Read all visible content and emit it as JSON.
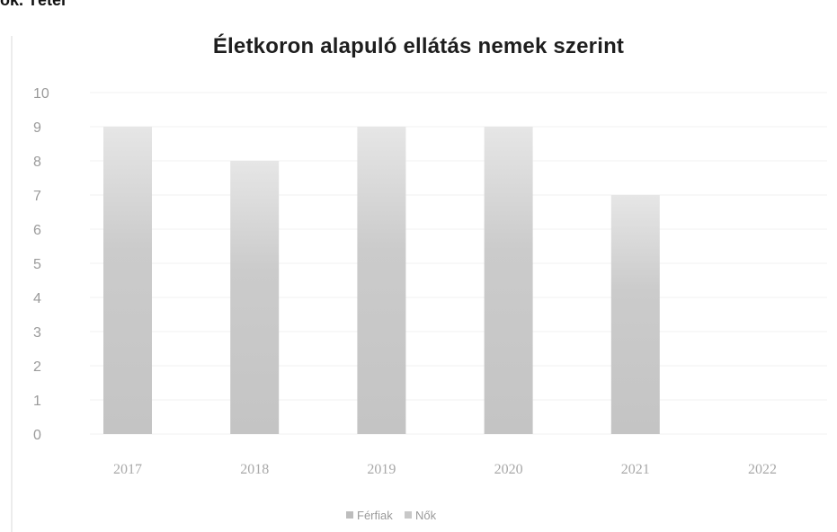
{
  "fragment_text": "ok. Tétel",
  "colors": {
    "bar_female": "#c8c8c8",
    "bar_female_light": "#e3e3e3",
    "bar_male": "#bdbdbd",
    "grid": "#f1f1f1",
    "text_muted": "#9a9a9a"
  },
  "chart_data": {
    "type": "bar",
    "title": "Életkoron alapuló ellátás nemek szerint",
    "xlabel": "",
    "ylabel": "",
    "categories": [
      "2017",
      "2018",
      "2019",
      "2020",
      "2021",
      "2022"
    ],
    "series": [
      {
        "name": "Férfiak",
        "values": [
          0,
          0,
          0,
          0,
          0,
          0
        ]
      },
      {
        "name": "Nők",
        "values": [
          9,
          8,
          9,
          9,
          7,
          0
        ]
      }
    ],
    "ylim": [
      0,
      10
    ],
    "yticks": [
      "0",
      "1",
      "2",
      "3",
      "4",
      "5",
      "6",
      "7",
      "8",
      "9",
      "10"
    ],
    "grid": true,
    "legend": "bottom"
  }
}
